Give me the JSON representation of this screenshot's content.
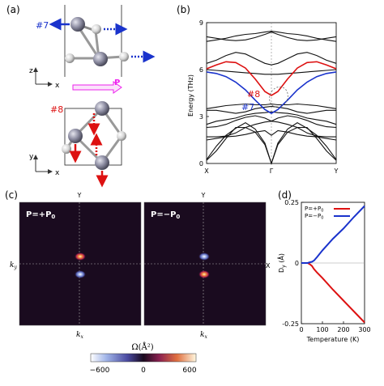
{
  "panel_a": {
    "label": "(a)",
    "mode7": "#7",
    "mode8": "#8",
    "axes_top": {
      "z": "z",
      "x": "x"
    },
    "axes_bottom": {
      "y": "y",
      "x": "x"
    },
    "p_label": "P",
    "colors": {
      "blue": "#1a33cc",
      "red": "#dd1111",
      "magenta": "#ee22ee"
    }
  },
  "panel_b": {
    "label": "(b)",
    "ylabel": "Energy (THz)",
    "yticks": [
      "0",
      "3",
      "6",
      "9"
    ],
    "xticks": [
      "X",
      "Γ",
      "Y"
    ],
    "mode7": "#7",
    "mode8": "#8"
  },
  "panel_c": {
    "label": "(c)",
    "ylabel": "k",
    "ylabel_sub": "y",
    "xlabel": "k",
    "xlabel_sub": "x",
    "top_axis": "Y",
    "right_axis": "X",
    "left_title": "P=+P",
    "left_title_sub": "0",
    "right_title": "P=−P",
    "right_title_sub": "0",
    "colorbar_label": "Ω(Å²)",
    "colorbar_ticks": [
      "−600",
      "0",
      "600"
    ]
  },
  "panel_d": {
    "label": "(d)",
    "ylabel": "D",
    "ylabel_sub": "y",
    "ylabel_unit": " (Å)",
    "xlabel": "Temperature (K)",
    "xticks": [
      "0",
      "100",
      "200",
      "300"
    ],
    "yticks": [
      "0.25",
      "0",
      "-0.25"
    ],
    "legend": [
      "P=+P",
      "P=−P"
    ],
    "legend_sub": "0",
    "series_colors": [
      "#dd1111",
      "#1a33cc"
    ]
  },
  "chart_data": [
    {
      "type": "line",
      "title": "",
      "xlabel": "",
      "ylabel": "Energy (THz)",
      "categories": [
        "X",
        "Γ",
        "Y"
      ],
      "ylim": [
        0,
        9
      ],
      "series": [
        {
          "name": "#7",
          "x": [
            0,
            0.15,
            0.3,
            0.45,
            0.6,
            0.75,
            0.9,
            1.0,
            1.1,
            1.25,
            1.4,
            1.55,
            1.7,
            1.85,
            2.0
          ],
          "y": [
            5.85,
            5.75,
            5.55,
            5.2,
            4.7,
            4.05,
            3.45,
            3.2,
            3.45,
            4.05,
            4.7,
            5.2,
            5.55,
            5.75,
            5.85
          ]
        },
        {
          "name": "#8",
          "x": [
            0,
            0.15,
            0.3,
            0.45,
            0.6,
            0.75,
            0.9,
            1.0,
            1.1,
            1.25,
            1.4,
            1.55,
            1.7,
            1.85,
            2.0
          ],
          "y": [
            6.05,
            6.3,
            6.5,
            6.45,
            6.1,
            5.4,
            4.6,
            4.35,
            4.6,
            5.4,
            6.1,
            6.45,
            6.5,
            6.3,
            6.05
          ]
        }
      ]
    },
    {
      "type": "line",
      "title": "",
      "xlabel": "Temperature (K)",
      "ylabel": "D_y (Å)",
      "xlim": [
        0,
        300
      ],
      "ylim": [
        -0.25,
        0.25
      ],
      "series": [
        {
          "name": "P=+P0",
          "x": [
            0,
            30,
            40,
            50,
            60,
            75,
            100,
            150,
            200,
            250,
            300
          ],
          "y": [
            0,
            0,
            -0.005,
            -0.012,
            -0.025,
            -0.04,
            -0.062,
            -0.11,
            -0.155,
            -0.2,
            -0.245
          ]
        },
        {
          "name": "P=−P0",
          "x": [
            0,
            30,
            40,
            50,
            60,
            75,
            100,
            150,
            200,
            250,
            300
          ],
          "y": [
            0,
            0,
            0.003,
            0.005,
            0.01,
            0.025,
            0.052,
            0.1,
            0.142,
            0.19,
            0.235
          ]
        }
      ]
    }
  ]
}
